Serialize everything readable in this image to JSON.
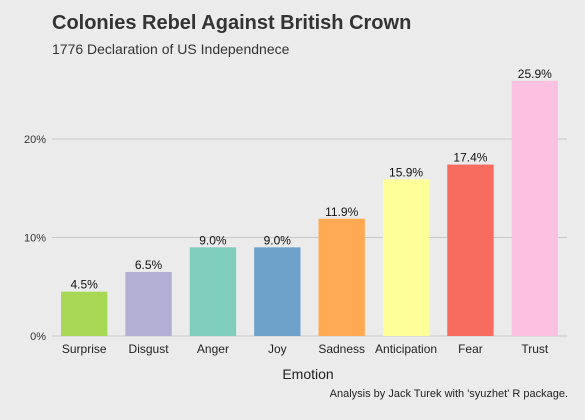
{
  "chart_data": {
    "type": "bar",
    "title": "Colonies Rebel Against British Crown",
    "subtitle": "1776 Declaration of US Independnece",
    "xlabel": "Emotion",
    "ylabel": "",
    "caption": "Analysis by Jack Turek with 'syuzhet' R package.",
    "categories": [
      "Surprise",
      "Disgust",
      "Anger",
      "Joy",
      "Sadness",
      "Anticipation",
      "Fear",
      "Trust"
    ],
    "values": [
      4.5,
      6.5,
      9.0,
      9.0,
      11.9,
      15.9,
      17.4,
      25.9
    ],
    "data_labels": [
      "4.5%",
      "6.5%",
      "9.0%",
      "9.0%",
      "11.9%",
      "15.9%",
      "17.4%",
      "25.9%"
    ],
    "colors": [
      "#a6d854",
      "#b3aed4",
      "#7fcdbb",
      "#6fa2cb",
      "#fdaa52",
      "#ffff99",
      "#f86c60",
      "#fcc1e0"
    ],
    "yticks": [
      0,
      10,
      20
    ],
    "ytick_labels": [
      "0%",
      "10%",
      "20%"
    ],
    "ylim": [
      0,
      27.2
    ],
    "grid": true,
    "background": "#ebebeb",
    "gridline_color": "#c8c8c8"
  }
}
